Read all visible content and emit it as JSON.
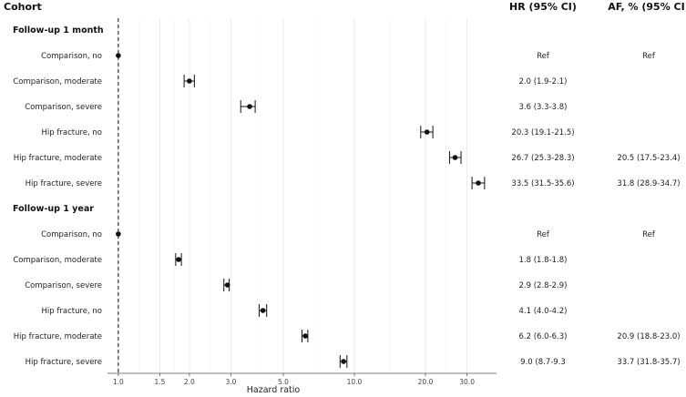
{
  "chart_data": {
    "type": "forest",
    "headers": {
      "cohort": "Cohort",
      "hr": "HR (95% CI)",
      "af": "AF, % (95% CI)"
    },
    "xlabel": "Hazard ratio",
    "x_scale": "log",
    "xlim": [
      0.9,
      40
    ],
    "x_ticks": [
      {
        "value": 1.0,
        "label": "1.0"
      },
      {
        "value": 1.5,
        "label": "1.5"
      },
      {
        "value": 2.0,
        "label": "2.0"
      },
      {
        "value": 3.0,
        "label": "3.0"
      },
      {
        "value": 5.0,
        "label": "5.0"
      },
      {
        "value": 10.0,
        "label": "10.0"
      },
      {
        "value": 20.0,
        "label": "20.0"
      },
      {
        "value": 30.0,
        "label": "30.0"
      }
    ],
    "reference_line": 1.0,
    "grid": true,
    "sections": [
      {
        "title": "Follow-up 1 month",
        "rows": [
          {
            "label": "Comparison, no",
            "hr": 1.0,
            "lo": 1.0,
            "hi": 1.0,
            "hr_text": "Ref",
            "af_text": "Ref"
          },
          {
            "label": "Comparison, moderate",
            "hr": 2.0,
            "lo": 1.9,
            "hi": 2.1,
            "hr_text": "2.0 (1.9-2.1)",
            "af_text": ""
          },
          {
            "label": "Comparison, severe",
            "hr": 3.6,
            "lo": 3.3,
            "hi": 3.8,
            "hr_text": "3.6 (3.3-3.8)",
            "af_text": ""
          },
          {
            "label": "Hip fracture, no",
            "hr": 20.3,
            "lo": 19.1,
            "hi": 21.5,
            "hr_text": "20.3 (19.1-21.5)",
            "af_text": ""
          },
          {
            "label": "Hip fracture, moderate",
            "hr": 26.7,
            "lo": 25.3,
            "hi": 28.3,
            "hr_text": "26.7 (25.3-28.3)",
            "af_text": "20.5 (17.5-23.4)"
          },
          {
            "label": "Hip fracture, severe",
            "hr": 33.5,
            "lo": 31.5,
            "hi": 35.6,
            "hr_text": "33.5 (31.5-35.6)",
            "af_text": "31.8 (28.9-34.7)"
          }
        ]
      },
      {
        "title": "Follow-up 1 year",
        "rows": [
          {
            "label": "Comparison, no",
            "hr": 1.0,
            "lo": 1.0,
            "hi": 1.0,
            "hr_text": "Ref",
            "af_text": "Ref"
          },
          {
            "label": "Comparison, moderate",
            "hr": 1.8,
            "lo": 1.75,
            "hi": 1.85,
            "hr_text": "1.8 (1.8-1.8)",
            "af_text": ""
          },
          {
            "label": "Comparison, severe",
            "hr": 2.9,
            "lo": 2.8,
            "hi": 2.95,
            "hr_text": "2.9 (2.8-2.9)",
            "af_text": ""
          },
          {
            "label": "Hip fracture, no",
            "hr": 4.1,
            "lo": 3.95,
            "hi": 4.25,
            "hr_text": "4.1 (4.0-4.2)",
            "af_text": ""
          },
          {
            "label": "Hip fracture, moderate",
            "hr": 6.2,
            "lo": 6.0,
            "hi": 6.35,
            "hr_text": "6.2 (6.0-6.3)",
            "af_text": "20.9 (18.8-23.0)"
          },
          {
            "label": "Hip fracture, severe",
            "hr": 9.0,
            "lo": 8.7,
            "hi": 9.3,
            "hr_text": "9.0 (8.7-9.3",
            "af_text": "33.7 (31.8-35.7)"
          }
        ]
      }
    ]
  }
}
